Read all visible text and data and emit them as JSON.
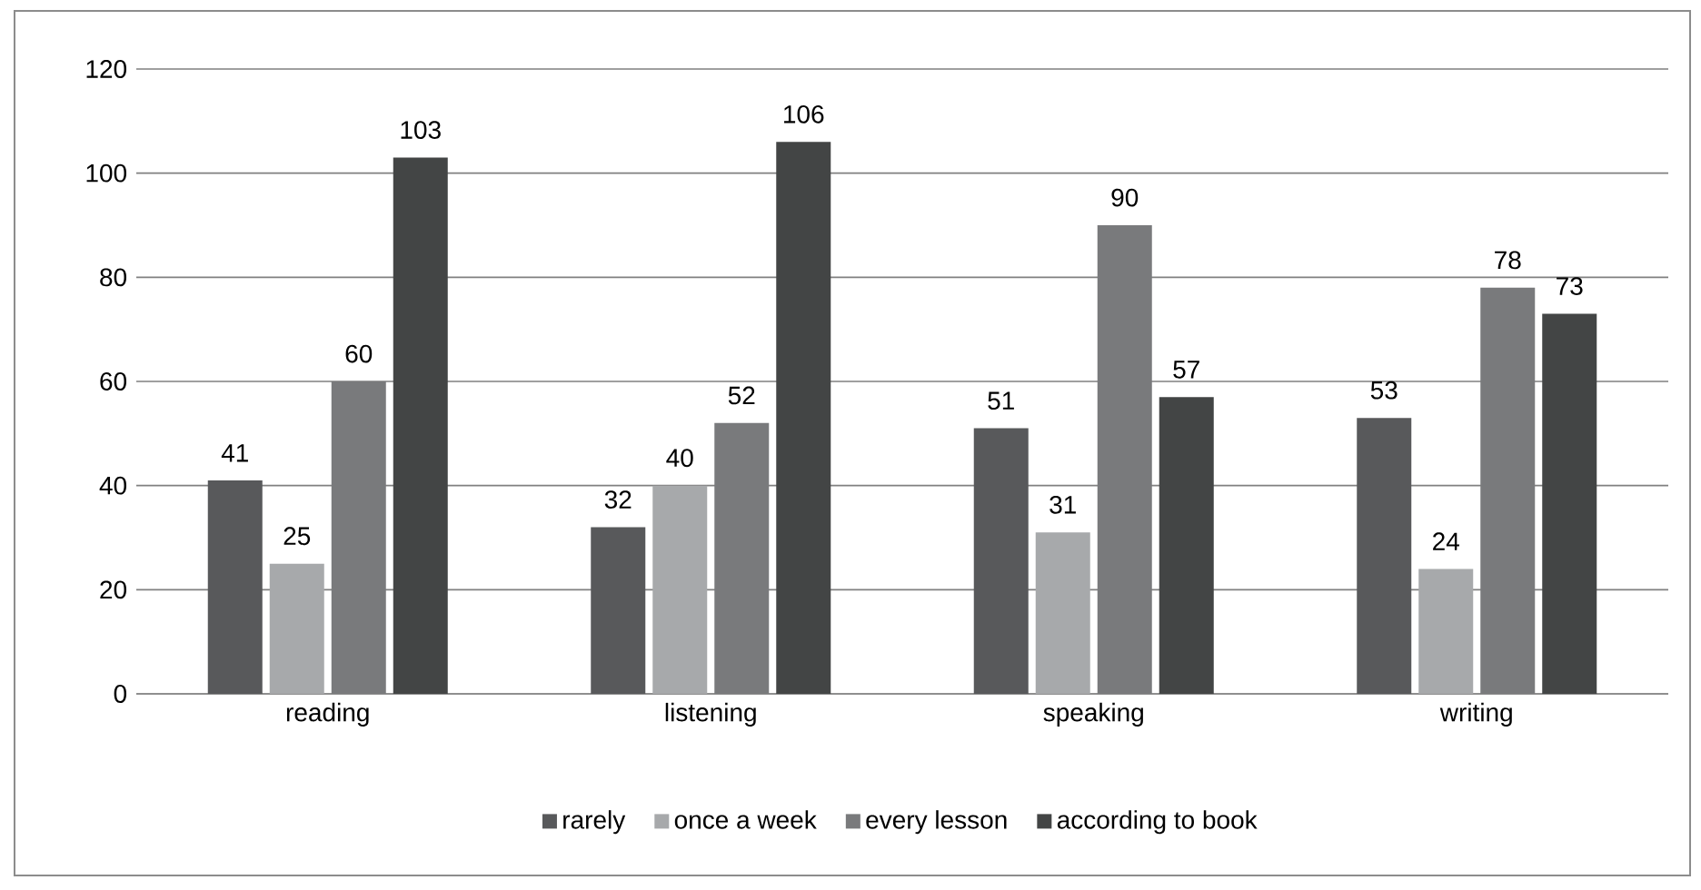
{
  "chart_data": {
    "type": "bar",
    "categories": [
      "reading",
      "listening",
      "speaking",
      "writing"
    ],
    "series": [
      {
        "name": "rarely",
        "color": "#58595b",
        "values": [
          41,
          32,
          51,
          53
        ]
      },
      {
        "name": "once a week",
        "color": "#a7a9ab",
        "values": [
          25,
          40,
          31,
          24
        ]
      },
      {
        "name": "every lesson",
        "color": "#797a7c",
        "values": [
          60,
          52,
          90,
          78
        ]
      },
      {
        "name": "according to book",
        "color": "#434545",
        "values": [
          103,
          106,
          57,
          73
        ]
      }
    ],
    "ylim": [
      0,
      120
    ],
    "yticks": [
      0,
      20,
      40,
      60,
      80,
      100,
      120
    ],
    "grid": "y",
    "legend": "bottom",
    "data_labels": true
  }
}
